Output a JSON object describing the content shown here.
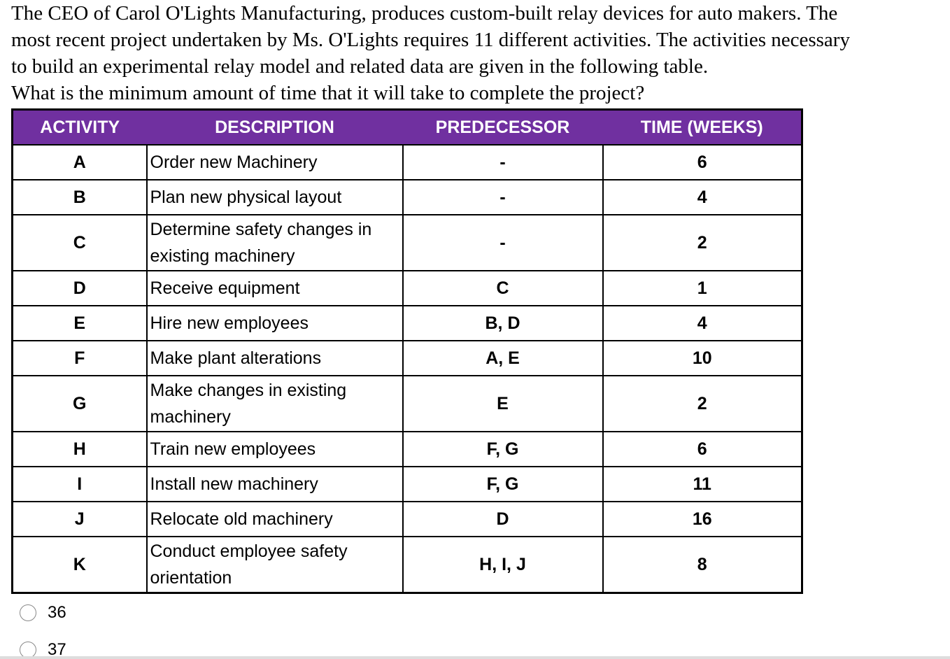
{
  "question": {
    "lines": [
      "The CEO of Carol O'Lights Manufacturing, produces custom-built relay devices for auto makers.  The",
      "most recent project undertaken by Ms. O'Lights requires 11 different activities. The activities necessary",
      "to build an experimental relay model and related data are given in the following table.",
      "What is the minimum amount of time that it will take to complete the project?"
    ]
  },
  "table": {
    "header": [
      "ACTIVITY",
      "DESCRIPTION",
      "PREDECESSOR",
      "TIME (WEEKS)"
    ],
    "rows": [
      [
        "A",
        "Order new Machinery",
        "-",
        "6"
      ],
      [
        "B",
        "Plan new physical layout",
        "-",
        "4"
      ],
      [
        "C",
        "Determine safety changes in existing machinery",
        "-",
        "2"
      ],
      [
        "D",
        "Receive equipment",
        "C",
        "1"
      ],
      [
        "E",
        "Hire new employees",
        "B, D",
        "4"
      ],
      [
        "F",
        "Make plant alterations",
        "A, E",
        "10"
      ],
      [
        "G",
        "Make changes in existing machinery",
        "E",
        "2"
      ],
      [
        "H",
        "Train new employees",
        "F, G",
        "6"
      ],
      [
        "I",
        "Install new machinery",
        "F, G",
        "11"
      ],
      [
        "J",
        "Relocate old machinery",
        "D",
        "16"
      ],
      [
        "K",
        "Conduct employee safety orientation",
        "H, I, J",
        "8"
      ]
    ]
  },
  "options": [
    "36",
    "37"
  ]
}
